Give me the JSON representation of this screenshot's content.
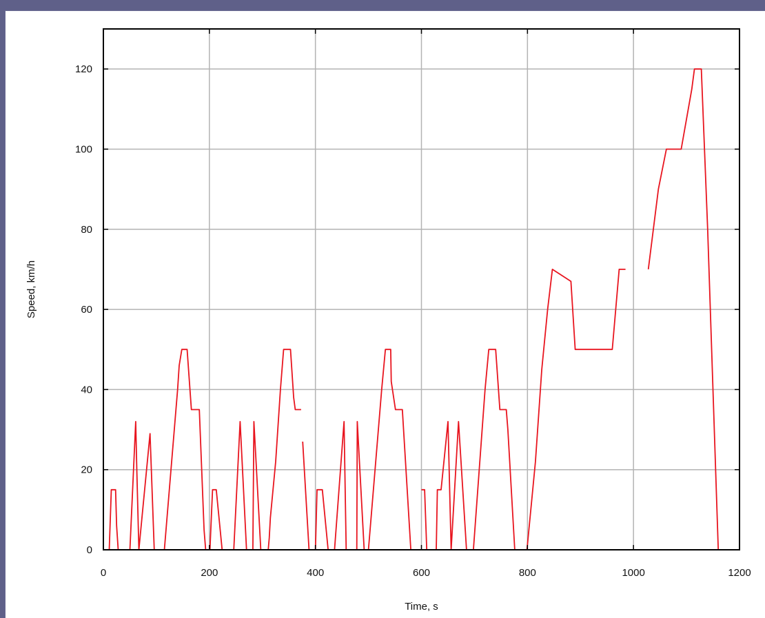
{
  "chart_data": {
    "type": "line",
    "title": "",
    "xlabel": "Time, s",
    "ylabel": "Speed, km/h",
    "xlim": [
      0,
      1200
    ],
    "ylim": [
      0,
      130
    ],
    "xticks": [
      0,
      200,
      400,
      600,
      800,
      1000,
      1200
    ],
    "xtick_labels": [
      "0",
      "200",
      "400",
      "600",
      "800",
      "1000",
      "1200"
    ],
    "yticks": [
      0,
      20,
      40,
      60,
      80,
      100,
      120
    ],
    "ytick_labels": [
      "0",
      "20",
      "40",
      "60",
      "80",
      "100",
      "120"
    ],
    "grid": true,
    "legend": "none",
    "series": [
      {
        "color": "#e8141e",
        "segments": [
          [
            [
              11,
              0
            ],
            [
              15,
              15
            ],
            [
              23,
              15
            ],
            [
              25,
              6
            ],
            [
              28,
              0
            ],
            [
              50,
              0
            ],
            [
              61,
              32
            ],
            [
              63,
              20
            ],
            [
              67,
              0
            ],
            [
              88,
              29
            ],
            [
              96,
              0
            ],
            [
              115,
              0
            ],
            [
              140,
              40
            ],
            [
              143,
              46
            ],
            [
              148,
              50
            ],
            [
              158,
              50
            ],
            [
              166,
              35
            ],
            [
              176,
              35
            ],
            [
              181,
              35
            ],
            [
              190,
              5
            ],
            [
              193,
              0
            ]
          ],
          [
            [
              201,
              0
            ],
            [
              206,
              15
            ],
            [
              213,
              15
            ],
            [
              224,
              0
            ],
            [
              246,
              0
            ],
            [
              258,
              32
            ],
            [
              270,
              0
            ],
            [
              282,
              0
            ],
            [
              284,
              32
            ],
            [
              297,
              0
            ],
            [
              311,
              0
            ],
            [
              313,
              3
            ],
            [
              315,
              8
            ],
            [
              325,
              22
            ],
            [
              334,
              40
            ],
            [
              340,
              50
            ],
            [
              353,
              50
            ],
            [
              359,
              38
            ],
            [
              362,
              35
            ],
            [
              373,
              35
            ]
          ],
          [
            [
              376,
              27
            ],
            [
              388,
              0
            ],
            [
              400,
              0
            ],
            [
              403,
              15
            ],
            [
              413,
              15
            ],
            [
              424,
              0
            ],
            [
              436,
              0
            ],
            [
              454,
              32
            ],
            [
              458,
              0
            ],
            [
              478,
              0
            ],
            [
              479,
              32
            ],
            [
              492,
              0
            ],
            [
              500,
              0
            ],
            [
              525,
              40
            ],
            [
              532,
              50
            ],
            [
              542,
              50
            ],
            [
              543,
              42
            ],
            [
              551,
              35
            ],
            [
              564,
              35
            ],
            [
              580,
              0
            ],
            [
              590,
              0
            ]
          ],
          [
            [
              600,
              15
            ],
            [
              606,
              15
            ],
            [
              610,
              0
            ],
            [
              628,
              0
            ],
            [
              630,
              15
            ],
            [
              637,
              15
            ],
            [
              650,
              32
            ],
            [
              656,
              0
            ],
            [
              670,
              32
            ],
            [
              685,
              0
            ],
            [
              698,
              0
            ],
            [
              720,
              40
            ],
            [
              727,
              50
            ],
            [
              740,
              50
            ],
            [
              748,
              35
            ],
            [
              760,
              35
            ],
            [
              763,
              30
            ],
            [
              776,
              0
            ]
          ],
          [
            [
              799,
              0
            ],
            [
              810,
              15
            ],
            [
              815,
              22
            ],
            [
              827,
              45
            ],
            [
              838,
              60
            ],
            [
              847,
              70
            ],
            [
              882,
              67
            ],
            [
              890,
              50
            ],
            [
              960,
              50
            ],
            [
              973,
              70
            ],
            [
              985,
              70
            ]
          ],
          [
            [
              1028,
              70
            ],
            [
              1047,
              90
            ],
            [
              1062,
              100
            ],
            [
              1090,
              100
            ],
            [
              1110,
              115
            ],
            [
              1115,
              120
            ],
            [
              1128,
              120
            ],
            [
              1140,
              80
            ],
            [
              1150,
              40
            ],
            [
              1160,
              0
            ],
            [
              1171,
              0
            ]
          ]
        ]
      }
    ]
  }
}
